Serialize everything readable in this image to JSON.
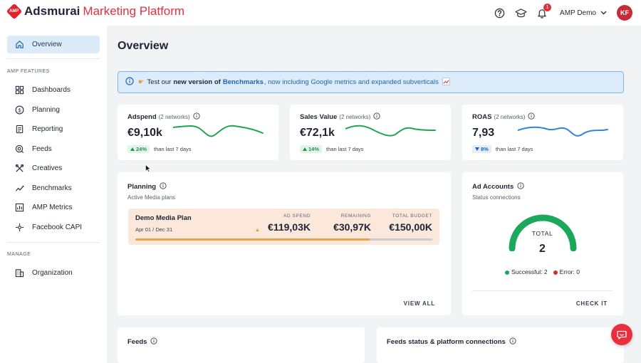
{
  "app": {
    "brand_name": "Adsmurai",
    "brand_sub": "Marketing Platform",
    "logo_text": "AMP"
  },
  "topbar": {
    "icons": [
      "help-icon",
      "graduation-cap-icon",
      "bell-icon"
    ],
    "notification_count": "1",
    "account_name": "AMP Demo",
    "avatar_initials": "KF"
  },
  "sidebar": {
    "overview": "Overview",
    "section_amp": "AMP FEATURES",
    "items": [
      {
        "label": "Dashboards",
        "icon": "dashboard-icon"
      },
      {
        "label": "Planning",
        "icon": "dollar-icon"
      },
      {
        "label": "Reporting",
        "icon": "report-icon"
      },
      {
        "label": "Feeds",
        "icon": "feeds-icon"
      },
      {
        "label": "Creatives",
        "icon": "tools-icon"
      },
      {
        "label": "Benchmarks",
        "icon": "trend-icon"
      },
      {
        "label": "AMP Metrics",
        "icon": "metrics-icon"
      },
      {
        "label": "Facebook CAPI",
        "icon": "capi-icon"
      }
    ],
    "section_manage": "MANAGE",
    "organization": "Organization"
  },
  "page": {
    "title": "Overview"
  },
  "banner": {
    "text_prefix": "Test our",
    "bold": "new version of",
    "link_strong": "Benchmarks",
    "link_rest": ", now including Google metrics and expanded subverticals"
  },
  "kpis": [
    {
      "name": "Adspend",
      "networks": "(2 networks)",
      "value": "€9,10k",
      "delta": "24%",
      "direction": "up",
      "delta_label": "than last 7 days",
      "color": "#22a455"
    },
    {
      "name": "Sales Value",
      "networks": "(2 networks)",
      "value": "€72,1k",
      "delta": "14%",
      "direction": "up",
      "delta_label": "than last 7 days",
      "color": "#22a455"
    },
    {
      "name": "ROAS",
      "networks": "(2 networks)",
      "value": "7,93",
      "delta": "8%",
      "direction": "down",
      "delta_label": "than last 7 days",
      "color": "#2f86d9"
    }
  ],
  "planning": {
    "title": "Planning",
    "subtitle": "Active Media plans",
    "plan_name": "Demo Media Plan",
    "plan_dates": "Apr 01 / Dec 31",
    "ad_spend_label": "AD SPEND",
    "ad_spend": "€119,03K",
    "remaining_label": "REMAINING",
    "remaining": "€30,97K",
    "budget_label": "TOTAL BUDGET",
    "budget": "€150,00K",
    "progress": 0.79,
    "view_all": "VIEW ALL"
  },
  "ad_accounts": {
    "title": "Ad Accounts",
    "subtitle": "Status connections",
    "total_label": "TOTAL",
    "total": "2",
    "successful_label": "Successful: 2",
    "error_label": "Error: 0",
    "check_it": "CHECK IT",
    "success_color": "#1aa85b",
    "error_color": "#d92c2c"
  },
  "bottom_cards": {
    "feeds_title": "Feeds",
    "feeds_status_title": "Feeds status & platform connections"
  }
}
